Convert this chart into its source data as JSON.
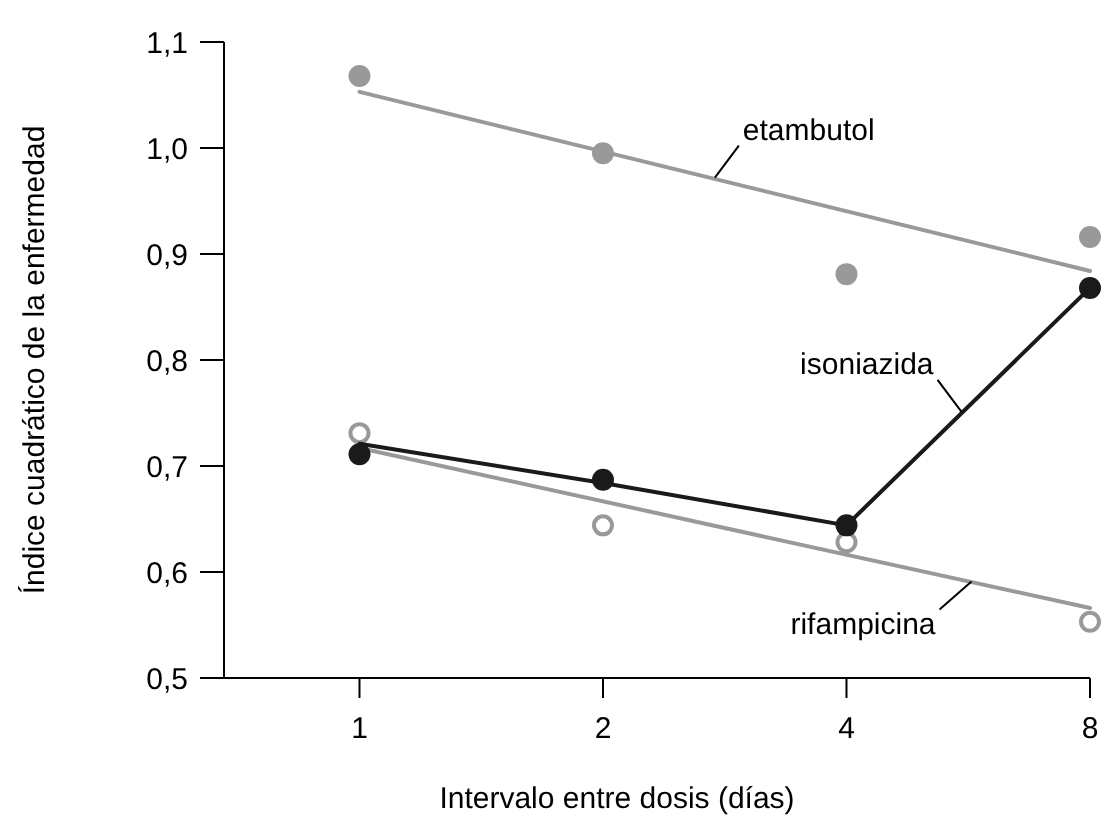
{
  "chart_data": {
    "type": "scatter",
    "xlabel": "Intervalo entre dosis (días)",
    "ylabel": "Índice cuadrático de la enfermedad",
    "log": "x",
    "xlim": [
      0.68,
      8
    ],
    "xticks": [
      1,
      2,
      4,
      8
    ],
    "ylim": [
      0.5,
      1.1
    ],
    "yticks": [
      {
        "value": 0.5,
        "label": "0,5"
      },
      {
        "value": 0.6,
        "label": "0,6"
      },
      {
        "value": 0.7,
        "label": "0,7"
      },
      {
        "value": 0.8,
        "label": "0,8"
      },
      {
        "value": 0.9,
        "label": "0,9"
      },
      {
        "value": 1.0,
        "label": "1,0"
      },
      {
        "value": 1.1,
        "label": "1,1"
      }
    ],
    "grid": false,
    "series": [
      {
        "type": "line",
        "color": "#999999",
        "x": [
          1,
          8
        ],
        "values": [
          1.053,
          0.884
        ],
        "marker": "none"
      },
      {
        "color": "#999999",
        "x": [
          1,
          2,
          4,
          8
        ],
        "values": [
          1.068,
          0.995,
          0.881,
          0.916
        ],
        "marker": "circle"
      },
      {
        "type": "line",
        "color": "#999999",
        "x": [
          1,
          8
        ],
        "values": [
          0.717,
          0.566
        ],
        "marker": "none"
      },
      {
        "color": "#999999",
        "x": [
          1,
          2,
          4,
          8
        ],
        "values": [
          0.731,
          0.644,
          0.628,
          0.553
        ],
        "marker": "circle-open"
      },
      {
        "type": "line",
        "color": "#1a1a1a",
        "x": [
          1,
          2,
          4,
          8
        ],
        "values": [
          0.721,
          0.684,
          0.644,
          0.868
        ],
        "marker": "none"
      },
      {
        "color": "#1a1a1a",
        "x": [
          1,
          2,
          4,
          8
        ],
        "values": [
          0.711,
          0.687,
          0.644,
          0.868
        ],
        "marker": "circle"
      }
    ],
    "annotations": [
      {
        "text": "etambutol",
        "x": 2.75,
        "y": 0.972
      },
      {
        "text": "isoniazida",
        "x": 5.55,
        "y": 0.751
      },
      {
        "text": "rifampicina",
        "x": 5.71,
        "y": 0.591
      }
    ]
  }
}
